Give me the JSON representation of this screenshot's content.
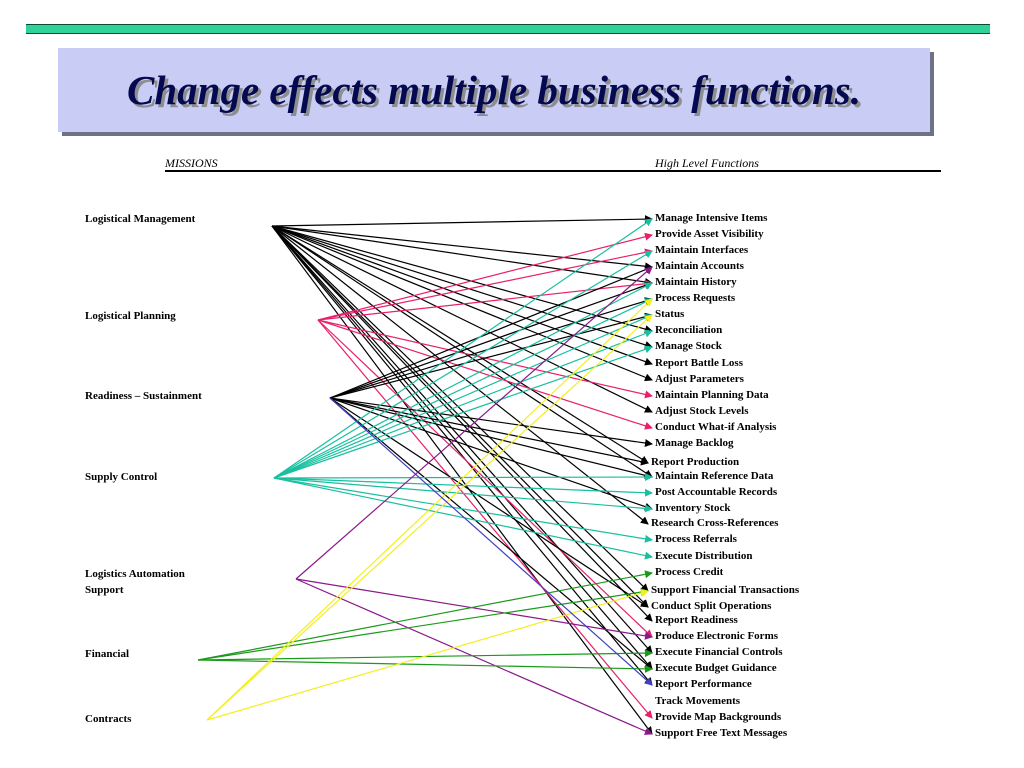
{
  "title": "Change effects multiple business functions.",
  "headers": {
    "missions": "MISSIONS",
    "functions": "High Level Functions"
  },
  "colors": {
    "black": "#000000",
    "magenta": "#e8206a",
    "teal": "#18c0a0",
    "purple": "#8a1a8a",
    "green": "#1a9a1a",
    "yellow": "#f2f01e",
    "blue": "#4040c0"
  },
  "missions": [
    {
      "label": "Logistical Management"
    },
    {
      "label": "Logistical Planning"
    },
    {
      "label": "Readiness – Sustainment"
    },
    {
      "label": "Supply Control"
    },
    {
      "label": "Logistics Automation Support"
    },
    {
      "label": "Financial"
    },
    {
      "label": "Contracts"
    }
  ],
  "functions": [
    "Manage Intensive Items",
    "Provide Asset Visibility",
    "Maintain Interfaces",
    "Maintain Accounts",
    "Maintain History",
    "Process Requests",
    "Status",
    "Reconciliation",
    "Manage Stock",
    "Report Battle Loss",
    "Adjust Parameters",
    "Maintain Planning Data",
    "Adjust Stock Levels",
    "Conduct What-if Analysis",
    "Manage Backlog",
    "Report Production",
    "Maintain Reference Data",
    "Post Accountable Records",
    "Inventory Stock",
    "Research Cross-References",
    "Process Referrals",
    "Execute Distribution",
    "Process Credit",
    "Support Financial Transactions",
    "Conduct Split Operations",
    "Report Readiness",
    "Produce Electronic Forms",
    "Execute Financial Controls",
    "Execute Budget Guidance",
    "Report Performance",
    "Track Movements",
    "Provide Map Backgrounds",
    "Support Free Text Messages"
  ],
  "links": [
    {
      "from": 0,
      "color": "black",
      "to": [
        0,
        3,
        4,
        7,
        8,
        9,
        10,
        12,
        15,
        16,
        19,
        23,
        24,
        25,
        27,
        28,
        29,
        32
      ]
    },
    {
      "from": 1,
      "color": "magenta",
      "to": [
        1,
        2,
        4,
        11,
        13,
        26,
        31
      ]
    },
    {
      "from": 2,
      "color": "black",
      "to": [
        3,
        4,
        5,
        6,
        14,
        15,
        16,
        18,
        24,
        28
      ]
    },
    {
      "from": 3,
      "color": "teal",
      "to": [
        0,
        2,
        4,
        5,
        6,
        7,
        8,
        16,
        17,
        18,
        20,
        21
      ]
    },
    {
      "from": 4,
      "color": "purple",
      "to": [
        3,
        26,
        32
      ]
    },
    {
      "from": 5,
      "color": "green",
      "to": [
        22,
        23,
        27,
        28
      ]
    },
    {
      "from": 6,
      "color": "yellow",
      "to": [
        5,
        6,
        23
      ]
    },
    {
      "from": 2,
      "color": "blue",
      "to": [
        29
      ]
    }
  ]
}
